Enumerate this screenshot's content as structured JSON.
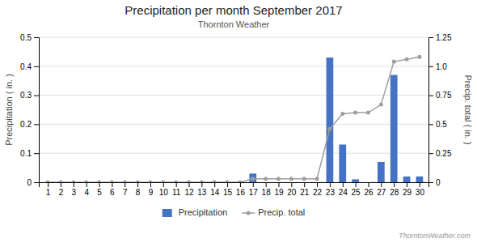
{
  "chart_data": {
    "type": "bar",
    "title": "Precipitation per month September 2017",
    "subtitle": "Thornton Weather",
    "annotations": [
      "ThorntonWeather.com"
    ],
    "y_label": "Precipitation ( in. )",
    "y2_label": "Precip. total ( in. )",
    "x": [
      1,
      2,
      3,
      4,
      5,
      6,
      7,
      8,
      9,
      10,
      11,
      12,
      13,
      14,
      15,
      16,
      17,
      18,
      19,
      20,
      21,
      22,
      23,
      24,
      25,
      26,
      27,
      28,
      29,
      30
    ],
    "xlim": [
      0.3,
      30.7
    ],
    "xticks": [
      1,
      2,
      3,
      4,
      5,
      6,
      7,
      8,
      9,
      10,
      11,
      12,
      13,
      14,
      15,
      16,
      17,
      18,
      19,
      20,
      21,
      22,
      23,
      24,
      25,
      26,
      27,
      28,
      29,
      30
    ],
    "ylim": [
      0,
      0.5
    ],
    "yticks": [
      0,
      0.1,
      0.2,
      0.3,
      0.4,
      0.5
    ],
    "y2lim": [
      0,
      1.25
    ],
    "y2ticks": [
      0,
      0.25,
      0.5,
      0.75,
      {
        "value": 1,
        "label": "1.0"
      },
      1.25
    ],
    "grid": true,
    "legend": "bottom",
    "series": [
      {
        "name": "Precipitation",
        "type": "bar",
        "color": "#4472c4",
        "values": [
          0,
          0,
          0,
          0,
          0,
          0,
          0,
          0,
          0,
          0,
          0,
          0,
          0,
          0,
          0,
          0,
          0.03,
          0,
          0,
          0,
          0,
          0,
          0.43,
          0.13,
          0.01,
          0,
          0.07,
          0.37,
          0.02,
          0.02
        ]
      },
      {
        "name": "Precip. total",
        "type": "line",
        "axis": "y2",
        "color": "#9e9e9e",
        "marker": "circle",
        "values": [
          0,
          0,
          0,
          0,
          0,
          0,
          0,
          0,
          0,
          0,
          0,
          0,
          0,
          0,
          0,
          0,
          0.03,
          0.03,
          0.03,
          0.03,
          0.03,
          0.03,
          0.46,
          0.59,
          0.6,
          0.6,
          0.67,
          1.04,
          1.06,
          1.08
        ]
      }
    ]
  }
}
